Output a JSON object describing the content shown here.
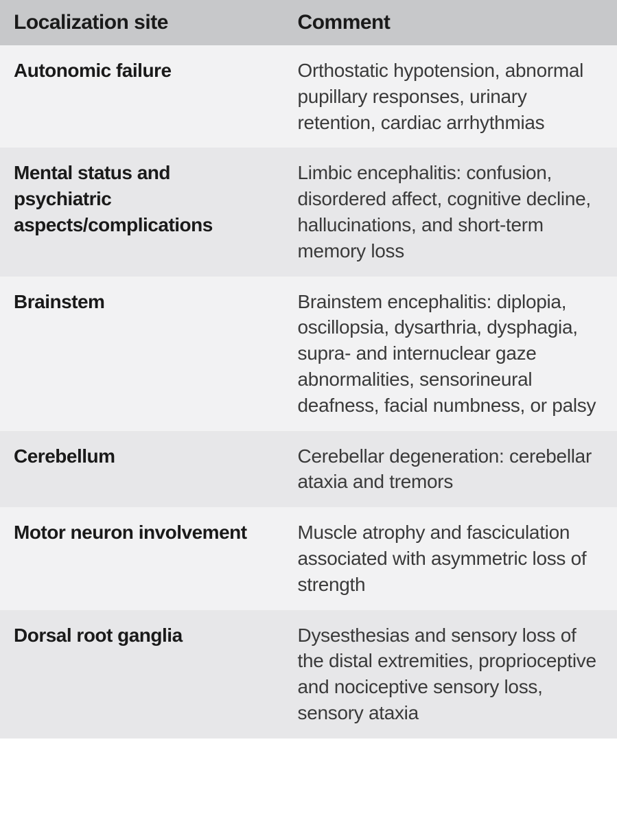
{
  "table": {
    "type": "table",
    "columns": [
      {
        "label": "Localization site",
        "width_pct": 46,
        "align": "left",
        "font_weight": 700
      },
      {
        "label": "Comment",
        "width_pct": 54,
        "align": "left",
        "font_weight": 400
      }
    ],
    "header_bg": "#c7c8ca",
    "row_bg_odd": "#f2f2f3",
    "row_bg_even": "#e7e7e9",
    "header_fontsize_pt": 22,
    "body_fontsize_pt": 21,
    "text_color_header": "#1a1a1a",
    "text_color_site": "#1a1a1a",
    "text_color_comment": "#3a3a3a",
    "rows": [
      {
        "site": "Autonomic failure",
        "comment": "Orthostatic hypotension, abnormal pupillary responses, urinary retention, cardiac arrhythmias"
      },
      {
        "site": "Mental status and psychiatric aspects/complications",
        "comment": "Limbic encephalitis: confusion, disordered affect, cognitive decline, hallucinations, and short-term memory loss"
      },
      {
        "site": "Brainstem",
        "comment": "Brainstem encephalitis: diplopia, oscillopsia, dysarthria, dysphagia, supra- and internuclear gaze abnormalities, sensorineural deafness, facial numbness, or palsy"
      },
      {
        "site": "Cerebellum",
        "comment": "Cerebellar degeneration: cerebellar ataxia and tremors"
      },
      {
        "site": "Motor neuron involvement",
        "comment": "Muscle atrophy and fasciculation associated with asymmetric loss of strength"
      },
      {
        "site": "Dorsal root ganglia",
        "comment": "Dysesthesias and sensory loss of the distal extremities, proprioceptive and nociceptive sensory loss, sensory ataxia"
      }
    ]
  }
}
